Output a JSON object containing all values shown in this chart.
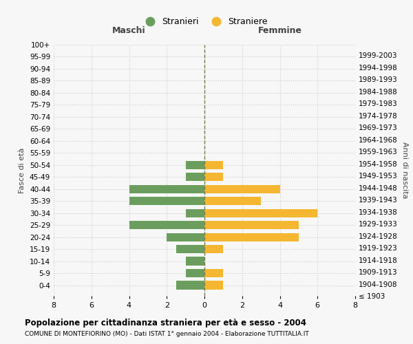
{
  "age_groups": [
    "100+",
    "95-99",
    "90-94",
    "85-89",
    "80-84",
    "75-79",
    "70-74",
    "65-69",
    "60-64",
    "55-59",
    "50-54",
    "45-49",
    "40-44",
    "35-39",
    "30-34",
    "25-29",
    "20-24",
    "15-19",
    "10-14",
    "5-9",
    "0-4"
  ],
  "birth_years": [
    "≤ 1903",
    "1904-1908",
    "1909-1913",
    "1914-1918",
    "1919-1923",
    "1924-1928",
    "1929-1933",
    "1934-1938",
    "1939-1943",
    "1944-1948",
    "1949-1953",
    "1954-1958",
    "1959-1963",
    "1964-1968",
    "1969-1973",
    "1974-1978",
    "1979-1983",
    "1984-1988",
    "1989-1993",
    "1994-1998",
    "1999-2003"
  ],
  "maschi": [
    0,
    0,
    0,
    0,
    0,
    0,
    0,
    0,
    0,
    0,
    1,
    1,
    4,
    4,
    1,
    4,
    2,
    1.5,
    1,
    1,
    1.5
  ],
  "femmine": [
    0,
    0,
    0,
    0,
    0,
    0,
    0,
    0,
    0,
    0,
    1,
    1,
    4,
    3,
    6,
    5,
    5,
    1,
    0,
    1,
    1
  ],
  "maschi_color": "#6b9e5e",
  "femmine_color": "#f5b731",
  "background_color": "#f7f7f7",
  "grid_color": "#cccccc",
  "center_line_color": "#7a7a50",
  "title": "Popolazione per cittadinanza straniera per età e sesso - 2004",
  "subtitle": "COMUNE DI MONTEFIORINO (MO) - Dati ISTAT 1° gennaio 2004 - Elaborazione TUTTITALIA.IT",
  "xlabel_left": "Maschi",
  "xlabel_right": "Femmine",
  "ylabel_left": "Fasce di età",
  "ylabel_right": "Anni di nascita",
  "legend_stranieri": "Stranieri",
  "legend_straniere": "Straniere",
  "xlim": 8
}
